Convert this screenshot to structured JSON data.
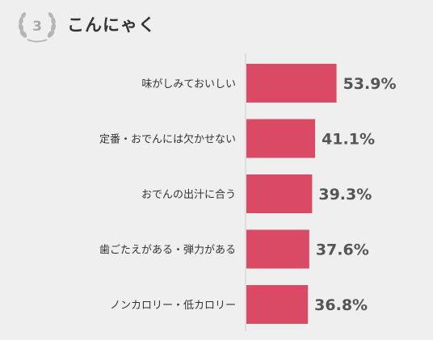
{
  "header": {
    "rank": "3",
    "title": "こんにゃく"
  },
  "colors": {
    "background": "#efefef",
    "bar": "#db4a64",
    "label_text": "#333333",
    "value_text": "#555555",
    "axis": "#cccccc",
    "badge": "#a9a9a9"
  },
  "chart_data": {
    "type": "bar",
    "orientation": "horizontal",
    "categories": [
      "味がしみておいしい",
      "定番・おでんには欠かせない",
      "おでんの出汁に合う",
      "歯ごたえがある・弾力がある",
      "ノンカロリー・低カロリー"
    ],
    "values": [
      53.9,
      41.1,
      39.3,
      37.6,
      36.8
    ],
    "value_labels": [
      "53.9%",
      "41.1%",
      "39.3%",
      "37.6%",
      "36.8%"
    ],
    "unit": "%",
    "title": "こんにゃく",
    "xlabel": "",
    "ylabel": "",
    "grid": false,
    "legend": "none"
  }
}
